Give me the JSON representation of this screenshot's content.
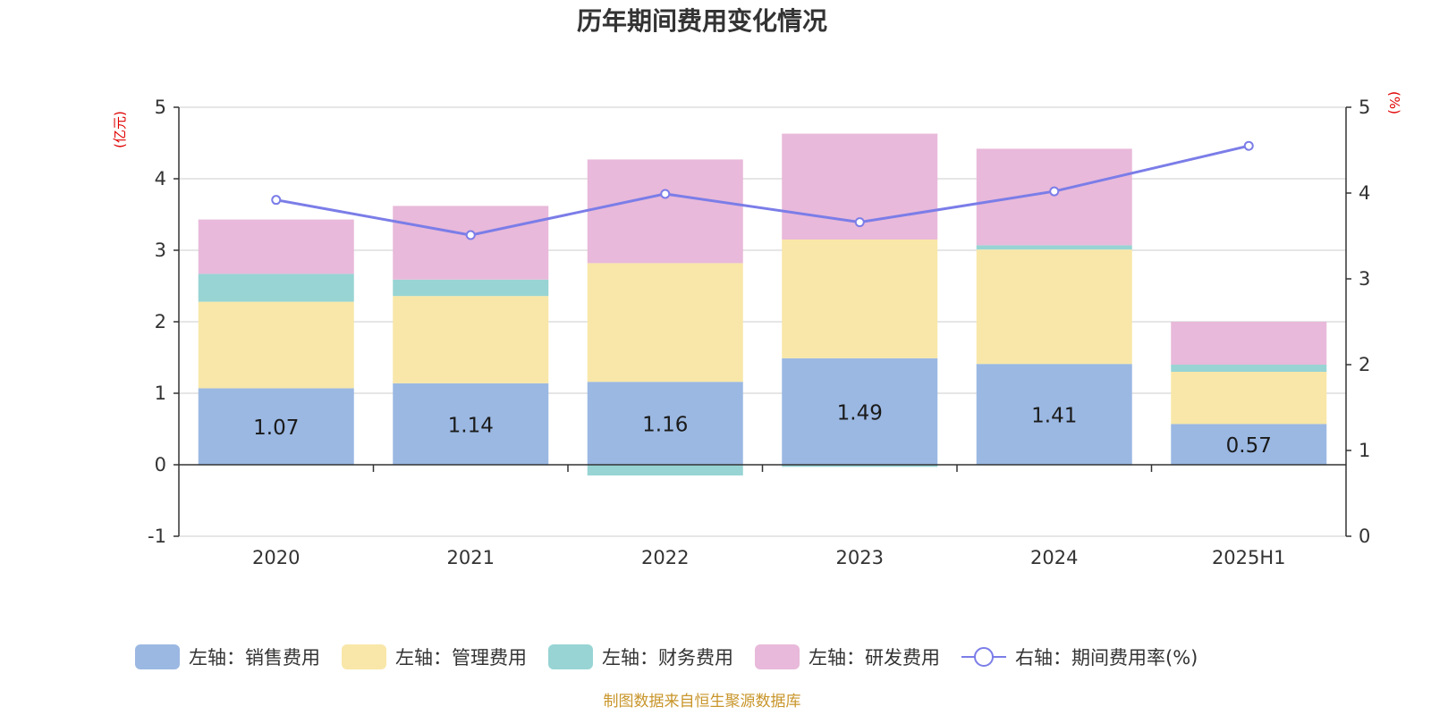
{
  "chart_data": {
    "type": "bar",
    "title": "历年期间费用变化情况",
    "categories": [
      "2020",
      "2021",
      "2022",
      "2023",
      "2024",
      "2025H1"
    ],
    "left_axis": {
      "unit_label": "(亿元)",
      "ylim": [
        -1,
        5
      ],
      "ticks": [
        "5",
        "4",
        "3",
        "2",
        "1",
        "0",
        "-1"
      ]
    },
    "right_axis": {
      "unit_label": "(%)",
      "ylim": [
        0,
        5
      ],
      "ticks": [
        "5",
        "4",
        "3",
        "2",
        "1",
        "0"
      ]
    },
    "stacked": true,
    "series": [
      {
        "name": "左轴：销售费用",
        "axis": "left",
        "color": "#9bb8e2",
        "values": [
          1.07,
          1.14,
          1.16,
          1.49,
          1.41,
          0.57
        ],
        "labels": [
          "1.07",
          "1.14",
          "1.16",
          "1.49",
          "1.41",
          "0.57"
        ]
      },
      {
        "name": "左轴：管理费用",
        "axis": "left",
        "color": "#f8e7a8",
        "values": [
          1.21,
          1.22,
          1.66,
          1.66,
          1.6,
          0.73
        ]
      },
      {
        "name": "左轴：财务费用",
        "axis": "left",
        "color": "#98d4d4",
        "values": [
          0.39,
          0.23,
          -0.15,
          -0.03,
          0.06,
          0.1
        ]
      },
      {
        "name": "左轴：研发费用",
        "axis": "left",
        "color": "#e8b9da",
        "values": [
          0.76,
          1.03,
          1.45,
          1.48,
          1.35,
          0.6
        ]
      },
      {
        "name": "右轴：期间费用率(%)",
        "axis": "right",
        "type": "line",
        "color": "#7b7de8",
        "values": [
          3.92,
          3.51,
          3.99,
          3.66,
          4.02,
          4.55
        ]
      }
    ],
    "legend_position": "bottom",
    "grid": true,
    "source": "制图数据来自恒生聚源数据库"
  }
}
